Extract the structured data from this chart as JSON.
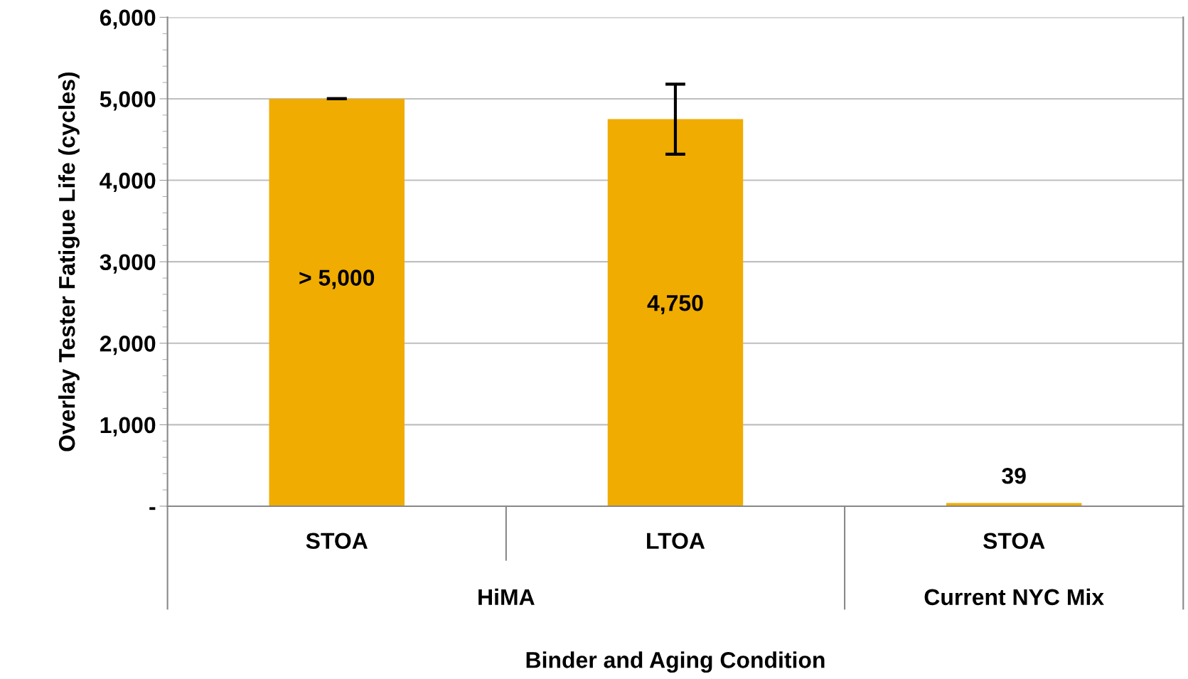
{
  "chart_data": {
    "type": "bar",
    "categories": [
      "STOA",
      "LTOA",
      "STOA"
    ],
    "values": [
      5000,
      4750,
      39
    ],
    "errors": [
      0,
      [
        4320,
        5180
      ],
      null
    ],
    "value_labels": [
      "> 5,000",
      "4,750",
      "39"
    ],
    "color": "#f0ac00",
    "ylabel": "Overlay Tester Fatigue Life (cycles)",
    "xlabel": "Binder and Aging Condition",
    "ylim": [
      0,
      6000
    ],
    "yticks": [
      {
        "value": 0,
        "label": "-"
      },
      {
        "value": 1000,
        "label": "1,000"
      },
      {
        "value": 2000,
        "label": "2,000"
      },
      {
        "value": 3000,
        "label": "3,000"
      },
      {
        "value": 4000,
        "label": "4,000"
      },
      {
        "value": 5000,
        "label": "5,000"
      },
      {
        "value": 6000,
        "label": "6,000"
      }
    ],
    "annotations": [
      "HiMA",
      "Current NYC Mix"
    ],
    "grid": "y"
  }
}
